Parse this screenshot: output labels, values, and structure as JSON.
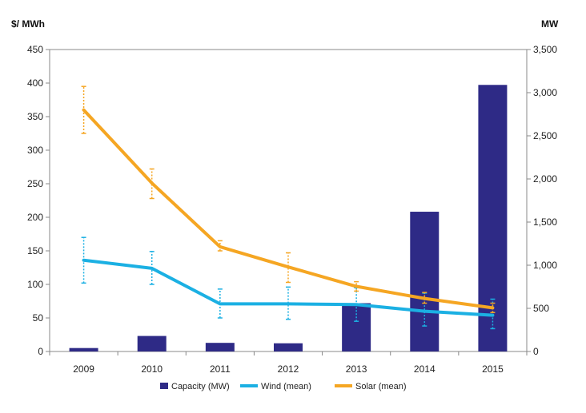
{
  "chart_data": {
    "type": "bar+line",
    "categories": [
      "2009",
      "2010",
      "2011",
      "2012",
      "2013",
      "2014",
      "2015"
    ],
    "left_axis": {
      "label": "$/ MWh",
      "min": 0,
      "max": 450,
      "step": 50,
      "tick_labels": [
        "0",
        "50",
        "100",
        "150",
        "200",
        "250",
        "300",
        "350",
        "400",
        "450"
      ]
    },
    "right_axis": {
      "label": "MW",
      "min": 0,
      "max": 3500,
      "step": 500,
      "tick_labels": [
        "0",
        "500",
        "1,000",
        "1,500",
        "2,000",
        "2,500",
        "3,000",
        "3,500"
      ]
    },
    "series": [
      {
        "name": "Capacity (MW)",
        "type": "bar",
        "axis": "right",
        "color": "#2e2a86",
        "values": [
          40,
          180,
          100,
          95,
          560,
          1620,
          3090
        ]
      },
      {
        "name": "Wind (mean)",
        "type": "line",
        "axis": "left",
        "color": "#1bb0e3",
        "values": [
          136,
          124,
          71,
          71,
          70,
          60,
          54
        ],
        "range_low": [
          102,
          100,
          50,
          48,
          45,
          38,
          34
        ],
        "range_high": [
          170,
          149,
          93,
          96,
          95,
          87,
          78
        ]
      },
      {
        "name": "Solar (mean)",
        "type": "line",
        "axis": "left",
        "color": "#f5a623",
        "values": [
          360,
          251,
          156,
          126,
          97,
          79,
          65
        ],
        "range_low": [
          325,
          228,
          150,
          103,
          90,
          72,
          58
        ],
        "range_high": [
          395,
          272,
          165,
          147,
          104,
          88,
          72
        ]
      }
    ],
    "grid": false,
    "legend_position": "bottom"
  }
}
